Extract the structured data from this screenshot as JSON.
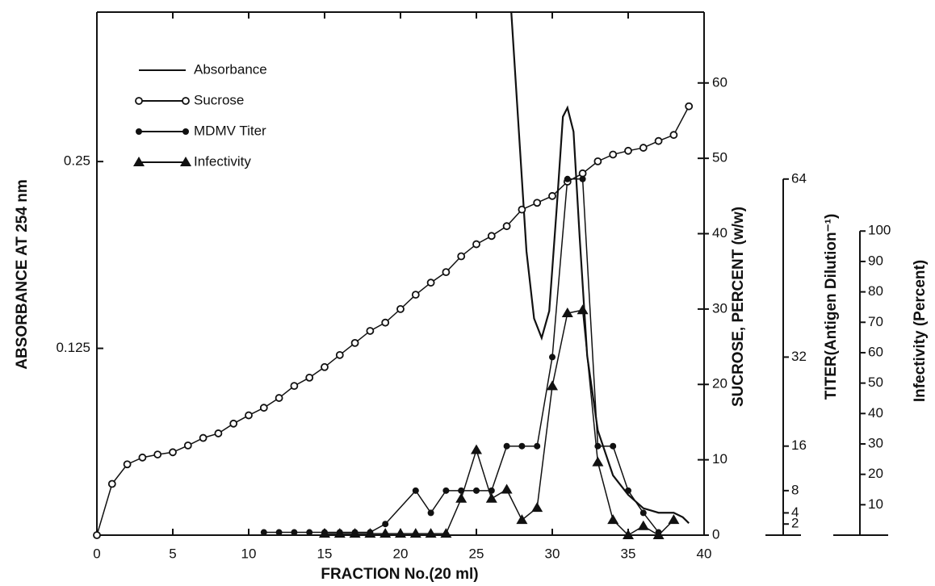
{
  "chart_data": {
    "type": "line",
    "x_label": "FRACTION No.(20 ml)",
    "y_label": "ABSORBANCE AT 254 nm",
    "y2_label": "SUCROSE, PERCENT (w/w)",
    "y3_label": "TITER(Antigen Dilution⁻¹)",
    "y4_label": "Infectivity (Percent)",
    "xlim": [
      0,
      40
    ],
    "xticks": [
      0,
      5,
      10,
      15,
      20,
      25,
      30,
      35,
      40
    ],
    "ylim": [
      0,
      0.35
    ],
    "yticks": [
      0.125,
      0.25
    ],
    "y2lim": [
      0,
      69.4
    ],
    "y2ticks": [
      0,
      10,
      20,
      30,
      40,
      50,
      60
    ],
    "y3lim": [
      0,
      94
    ],
    "y3ticks": [
      2,
      4,
      8,
      16,
      32,
      64
    ],
    "y4lim": [
      0,
      172
    ],
    "y4ticks": [
      10,
      20,
      30,
      40,
      50,
      60,
      70,
      80,
      90,
      100
    ],
    "series": [
      {
        "name": "Absorbance",
        "color": "#111111",
        "axis": "y",
        "marker": "none",
        "x": [
          27.3,
          27.8,
          28.3,
          28.8,
          29.3,
          29.8,
          30.3,
          30.7,
          31,
          31.4,
          31.8,
          32.3,
          33,
          34,
          35,
          36,
          37,
          38,
          38.6,
          39
        ],
        "values": [
          0.35,
          0.27,
          0.19,
          0.145,
          0.132,
          0.15,
          0.22,
          0.28,
          0.286,
          0.27,
          0.2,
          0.12,
          0.07,
          0.04,
          0.027,
          0.018,
          0.015,
          0.015,
          0.012,
          0.008
        ]
      },
      {
        "name": "Sucrose",
        "color": "#111111",
        "axis": "y2",
        "marker": "open-circle",
        "x": [
          0,
          1,
          2,
          3,
          4,
          5,
          6,
          7,
          8,
          9,
          10,
          11,
          12,
          13,
          14,
          15,
          16,
          17,
          18,
          19,
          20,
          21,
          22,
          23,
          24,
          25,
          26,
          27,
          28,
          29,
          30,
          31,
          32,
          33,
          34,
          35,
          36,
          37,
          38,
          39
        ],
        "values": [
          0,
          6.8,
          9.4,
          10.3,
          10.7,
          11.0,
          11.9,
          12.9,
          13.5,
          14.8,
          15.9,
          16.9,
          18.2,
          19.8,
          20.9,
          22.3,
          23.9,
          25.5,
          27.1,
          28.2,
          30.0,
          31.9,
          33.5,
          34.9,
          37.0,
          38.6,
          39.7,
          41.0,
          43.2,
          44.1,
          45.0,
          46.9,
          48.0,
          49.6,
          50.5,
          51.0,
          51.4,
          52.3,
          53.1,
          56.9
        ]
      },
      {
        "name": "MDMV Titer",
        "color": "#111111",
        "axis": "y3",
        "marker": "filled-circle",
        "x": [
          11,
          12,
          13,
          14,
          15,
          16,
          17,
          18,
          19,
          21,
          22,
          23,
          24,
          25,
          26,
          27,
          28,
          29,
          30,
          31,
          32,
          33,
          34,
          35,
          36,
          37
        ],
        "values": [
          0.5,
          0.5,
          0.5,
          0.5,
          0.5,
          0.5,
          0.5,
          0.5,
          2,
          8,
          4,
          8,
          8,
          8,
          8,
          16,
          16,
          16,
          32,
          64,
          64,
          16,
          16,
          8,
          4,
          0.5
        ]
      },
      {
        "name": "Infectivity",
        "color": "#111111",
        "axis": "y4",
        "marker": "triangle",
        "x": [
          15,
          16,
          17,
          18,
          19,
          20,
          21,
          22,
          23,
          24,
          25,
          26,
          27,
          28,
          29,
          30,
          31,
          32,
          33,
          34,
          35,
          36,
          37,
          38
        ],
        "values": [
          0.5,
          0.5,
          0.5,
          0.5,
          0.5,
          0.5,
          0.5,
          0.5,
          0.5,
          12,
          28,
          12,
          15,
          5,
          9,
          49,
          73,
          74,
          24,
          5,
          0,
          3,
          0,
          5
        ]
      }
    ]
  }
}
